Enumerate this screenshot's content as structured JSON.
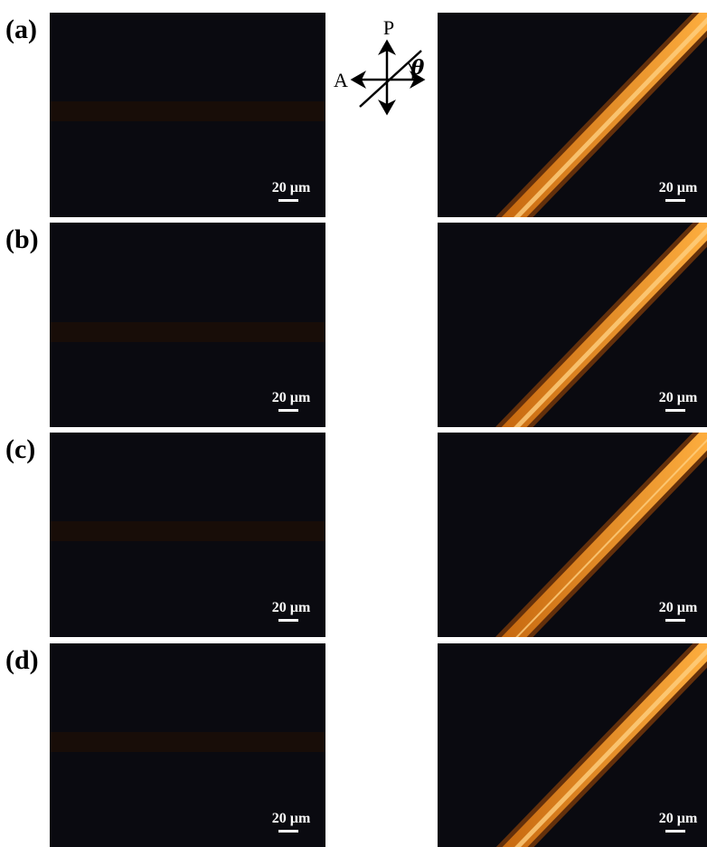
{
  "panels": [
    {
      "label": "(a)",
      "left": {
        "scale_bar": "20 µm"
      },
      "right": {
        "scale_bar": "20 µm"
      }
    },
    {
      "label": "(b)",
      "left": {
        "scale_bar": "20 µm"
      },
      "right": {
        "scale_bar": "20 µm"
      }
    },
    {
      "label": "(c)",
      "left": {
        "scale_bar": "20 µm"
      },
      "right": {
        "scale_bar": "20 µm"
      }
    },
    {
      "label": "(d)",
      "left": {
        "scale_bar": "20 µm"
      },
      "right": {
        "scale_bar": "20 µm"
      }
    }
  ],
  "polarizer": {
    "p": "P",
    "a": "A",
    "theta": "θ"
  }
}
